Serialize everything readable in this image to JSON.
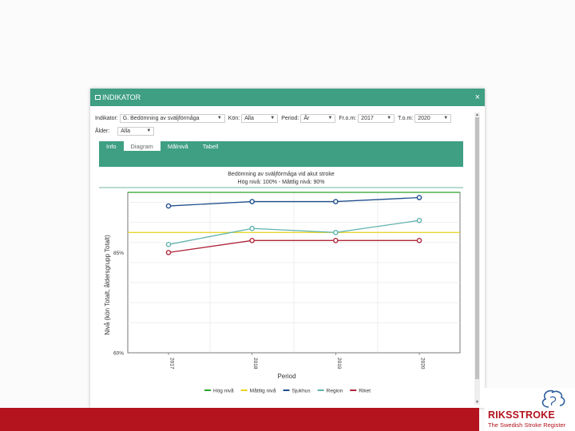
{
  "modal": {
    "title": "INDIKATOR",
    "close_label": "×"
  },
  "filters": {
    "indikator": {
      "label": "Indikator:",
      "value": "G. Bedömning av sväljförmåga"
    },
    "kon": {
      "label": "Kön:",
      "value": "Alla"
    },
    "period": {
      "label": "Period:",
      "value": "År"
    },
    "from": {
      "label": "Fr.o.m:",
      "value": "2017"
    },
    "tom": {
      "label": "T.o.m:",
      "value": "2020"
    },
    "alder": {
      "label": "Ålder:",
      "value": "Alla"
    }
  },
  "tabs": [
    {
      "label": "Info",
      "active": false
    },
    {
      "label": "Diagram",
      "active": true
    },
    {
      "label": "Målnivå",
      "active": false
    },
    {
      "label": "Tabell",
      "active": false
    }
  ],
  "colors": {
    "accent": "#3f9f83",
    "brand_red": "#b3141e"
  },
  "chart_data": {
    "type": "line",
    "title": "Bedömning av sväljförmåga vid akut stroke",
    "subtitle": "Hög nivå: 100% - Måttlig nivå: 90%",
    "xlabel": "Period",
    "ylabel": "Nivå (kön Totalt, åldersgrupp Totalt)",
    "categories": [
      "2017",
      "2018",
      "2019",
      "2020"
    ],
    "ylim": [
      60,
      100
    ],
    "yticks": [
      {
        "value": 85,
        "label": "85%"
      },
      {
        "value": 60,
        "label": "60%"
      }
    ],
    "grid": true,
    "legend_position": "bottom",
    "series": [
      {
        "name": "Hög nivå",
        "color": "#2ca02c",
        "values": [
          100,
          100,
          100,
          100
        ],
        "markers": false
      },
      {
        "name": "Måttlig nivå",
        "color": "#e6d21a",
        "values": [
          90,
          90,
          90,
          90
        ],
        "markers": false
      },
      {
        "name": "Sjukhus",
        "color": "#1f4e8c",
        "values": [
          96.6,
          97.7,
          97.7,
          98.7
        ],
        "markers": true
      },
      {
        "name": "Region",
        "color": "#5fb3ab",
        "values": [
          87,
          91,
          90,
          93
        ],
        "markers": true
      },
      {
        "name": "Riket",
        "color": "#b0263a",
        "values": [
          85,
          88,
          88,
          88
        ],
        "markers": true
      }
    ]
  },
  "logo": {
    "name": "RIKSSTROKE",
    "tagline": "The Swedish Stroke Register"
  }
}
